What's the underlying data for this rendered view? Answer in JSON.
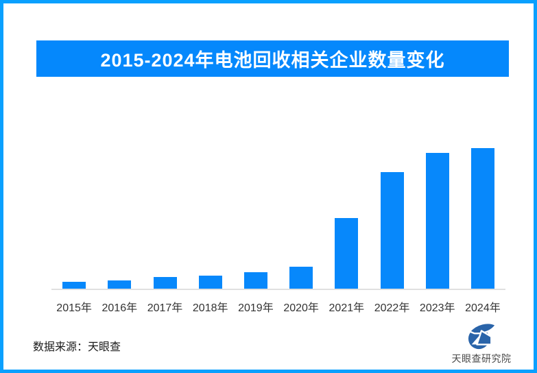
{
  "frame": {
    "border_color": "#0AA0FE",
    "background": "#FFFFFF"
  },
  "banner": {
    "title": "2015-2024年电池回收相关企业数量变化",
    "bg_color": "#0588FC",
    "text_color": "#FFFFFF"
  },
  "chart_data": {
    "type": "bar",
    "title": "2015-2024年电池回收相关企业数量变化",
    "categories": [
      "2015年",
      "2016年",
      "2017年",
      "2018年",
      "2019年",
      "2020年",
      "2021年",
      "2022年",
      "2023年",
      "2024年"
    ],
    "values": [
      5.1,
      5.7,
      8.1,
      9.1,
      11.6,
      15.5,
      50.2,
      82.9,
      96.4,
      100
    ],
    "values_note": "estimated relative units read from bar heights; no y-axis or data labels shown; 2024 bar = 100",
    "xlabel": "",
    "ylabel": "",
    "ylim": [
      0,
      104
    ],
    "grid": false,
    "legend": false,
    "bar_color": "#0788FB",
    "baseline_color": "#E0E0E0",
    "tick_label_color": "#333333"
  },
  "footer": {
    "source_label": "数据来源：天眼查",
    "logo_text": "天眼查研究院",
    "logo_color": "#2A64A9"
  }
}
